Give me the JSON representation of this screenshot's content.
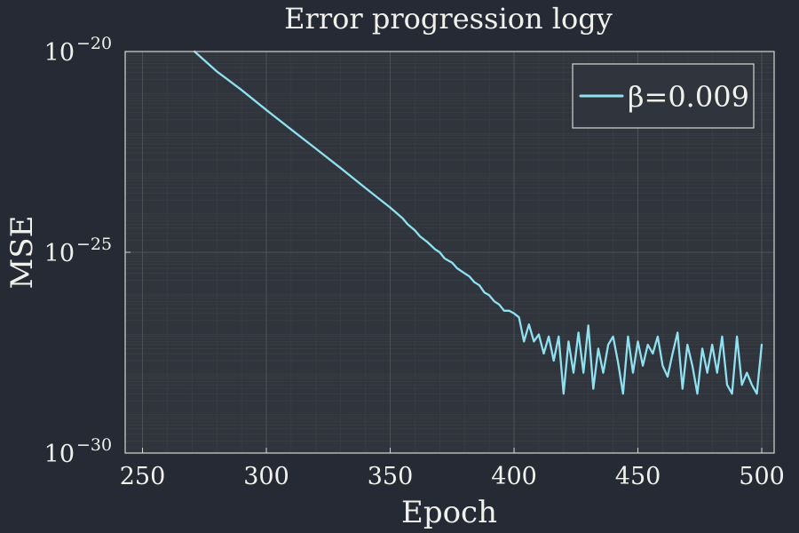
{
  "chart_data": {
    "type": "line",
    "title": "Error progression logy",
    "xlabel": "Epoch",
    "ylabel": "MSE",
    "xlim": [
      243,
      505
    ],
    "ylim": [
      1e-30,
      1e-20
    ],
    "y_scale": "log",
    "x_ticks": [
      250,
      300,
      350,
      400,
      450,
      500
    ],
    "x_tick_labels": [
      "250",
      "300",
      "350",
      "400",
      "450",
      "500"
    ],
    "y_ticks": [
      {
        "value": 1e-20,
        "base": "10",
        "exponent": "−20"
      },
      {
        "value": 1e-25,
        "base": "10",
        "exponent": "−25"
      },
      {
        "value": 1e-30,
        "base": "10",
        "exponent": "−30"
      }
    ],
    "grid": true,
    "legend_position": "top-right",
    "series": [
      {
        "name": "β=0.009",
        "color": "#8fe1f0",
        "x": [
          271,
          280,
          290,
          300,
          310,
          320,
          330,
          340,
          350,
          355,
          357,
          360,
          362,
          365,
          368,
          370,
          372,
          375,
          377,
          380,
          382,
          384,
          386,
          388,
          390,
          392,
          394,
          396,
          398,
          400,
          402,
          404,
          406,
          408,
          410,
          412,
          414,
          416,
          418,
          420,
          422,
          424,
          426,
          428,
          430,
          432,
          434,
          436,
          438,
          440,
          442,
          444,
          446,
          448,
          450,
          452,
          454,
          456,
          458,
          460,
          462,
          464,
          466,
          468,
          470,
          472,
          474,
          476,
          478,
          480,
          482,
          484,
          486,
          488,
          490,
          492,
          494,
          496,
          498,
          500
        ],
        "y": [
          1e-20,
          3.2e-21,
          1.1e-21,
          3.5e-22,
          1.15e-22,
          3.8e-23,
          1.25e-23,
          4e-24,
          1.3e-24,
          7e-25,
          5e-25,
          3.5e-25,
          2.5e-25,
          1.8e-25,
          1.2e-25,
          1e-25,
          7e-26,
          5.5e-26,
          4e-26,
          3e-26,
          2.5e-26,
          1.8e-26,
          1.5e-26,
          1e-26,
          8.5e-27,
          6e-27,
          5e-27,
          3.5e-27,
          3.5e-27,
          3e-27,
          2.4e-27,
          6e-28,
          1.6e-27,
          6e-28,
          9e-28,
          3e-28,
          8e-28,
          2e-28,
          8e-28,
          3e-29,
          6e-28,
          1e-28,
          1e-27,
          1e-28,
          1.5e-27,
          4e-29,
          4e-28,
          1e-28,
          5e-28,
          8e-28,
          1.8e-28,
          3e-29,
          8e-28,
          1e-28,
          6e-28,
          1.5e-28,
          5e-28,
          3e-28,
          8e-28,
          1.5e-28,
          8e-29,
          3e-28,
          1e-27,
          4e-29,
          5e-28,
          1.5e-28,
          3e-29,
          4e-28,
          1e-28,
          5e-28,
          1e-28,
          8e-28,
          5e-29,
          3e-29,
          8e-28,
          5e-29,
          1e-28,
          5e-29,
          3e-29,
          5e-28
        ]
      }
    ]
  }
}
